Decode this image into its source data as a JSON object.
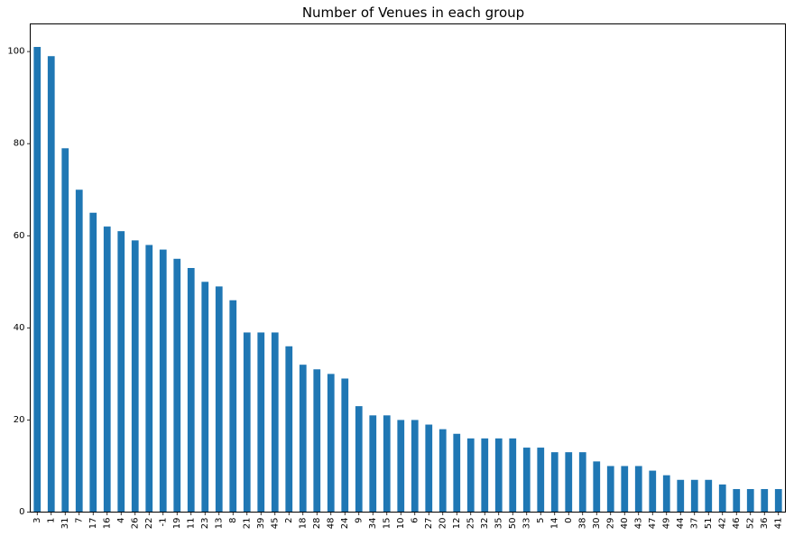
{
  "chart_data": {
    "type": "bar",
    "title": "Number of Venues in each group",
    "xlabel": "",
    "ylabel": "",
    "ylim": [
      0,
      106
    ],
    "yticks": [
      0,
      20,
      40,
      60,
      80,
      100
    ],
    "grid": false,
    "bar_color": "#1f77b4",
    "categories": [
      "3",
      "1",
      "31",
      "7",
      "17",
      "16",
      "4",
      "26",
      "22",
      "-1",
      "19",
      "11",
      "23",
      "13",
      "8",
      "21",
      "39",
      "45",
      "2",
      "18",
      "28",
      "48",
      "24",
      "9",
      "34",
      "15",
      "10",
      "6",
      "27",
      "20",
      "12",
      "25",
      "32",
      "35",
      "50",
      "33",
      "5",
      "14",
      "0",
      "38",
      "30",
      "29",
      "40",
      "43",
      "47",
      "49",
      "44",
      "37",
      "51",
      "42",
      "46",
      "52",
      "36",
      "41"
    ],
    "values": [
      101,
      99,
      79,
      70,
      65,
      62,
      61,
      59,
      58,
      57,
      55,
      53,
      50,
      49,
      46,
      39,
      39,
      39,
      36,
      32,
      31,
      30,
      29,
      23,
      21,
      21,
      20,
      20,
      19,
      18,
      17,
      16,
      16,
      16,
      16,
      14,
      14,
      13,
      13,
      13,
      11,
      10,
      10,
      10,
      9,
      8,
      7,
      7,
      7,
      6,
      5,
      5,
      5,
      5
    ]
  }
}
